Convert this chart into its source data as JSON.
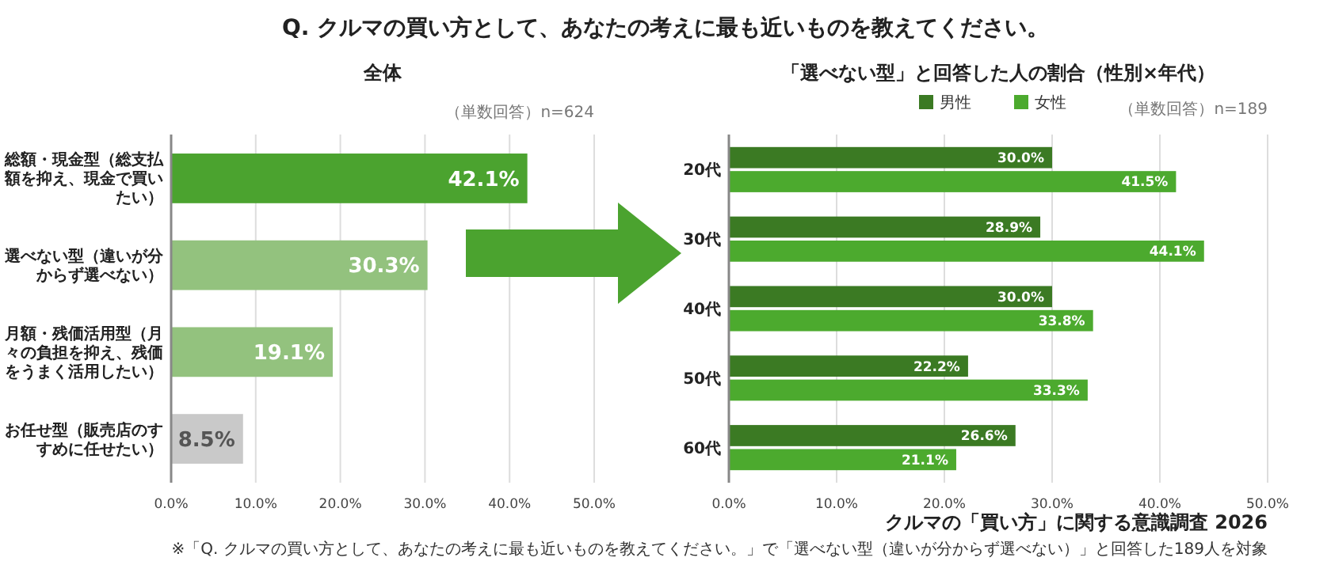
{
  "chart_data": [
    {
      "type": "bar",
      "orientation": "horizontal",
      "title": "全体",
      "categories": [
        "総額・現金型（総支払額を抑え、現金で買いたい）",
        "選べない型（違いが分からず選べない）",
        "月額・残価活用型（月々の負担を抑え、残価をうまく活用したい）",
        "お任せ型（販売店のすすめに任せたい）"
      ],
      "values": [
        42.1,
        30.3,
        19.1,
        8.5
      ],
      "colors": [
        "#4ba32f",
        "#93c27e",
        "#93c27e",
        "#c9c9c9"
      ],
      "value_labels": [
        "42.1%",
        "30.3%",
        "19.1%",
        "8.5%"
      ],
      "xlim": [
        0,
        50
      ],
      "xticks": [
        {
          "value": 0,
          "label": "0.0%"
        },
        {
          "value": 10,
          "label": "10.0%"
        },
        {
          "value": 20,
          "label": "20.0%"
        },
        {
          "value": 30,
          "label": "30.0%"
        },
        {
          "value": 40,
          "label": "40.0%"
        },
        {
          "value": 50,
          "label": "50.0%"
        }
      ],
      "grid": "x",
      "annotations": [
        "Q. クルマの買い方として、あなたの考えに最も近いものを教えてください。",
        "（単数回答）n=624"
      ]
    },
    {
      "type": "bar",
      "orientation": "horizontal",
      "title": "「選べない型」と回答した人の割合（性別×年代）",
      "categories": [
        "20代",
        "30代",
        "40代",
        "50代",
        "60代"
      ],
      "series": [
        {
          "name": "男性",
          "color": "#3b7a23",
          "values": [
            30.0,
            28.9,
            30.0,
            22.2,
            26.6
          ],
          "value_labels": [
            "30.0%",
            "28.9%",
            "30.0%",
            "22.2%",
            "26.6%"
          ]
        },
        {
          "name": "女性",
          "color": "#4caa2e",
          "values": [
            41.5,
            44.1,
            33.8,
            33.3,
            21.1
          ],
          "value_labels": [
            "41.5%",
            "44.1%",
            "33.8%",
            "33.3%",
            "21.1%"
          ]
        }
      ],
      "xlim": [
        0,
        50
      ],
      "xticks": [
        {
          "value": 0,
          "label": "0.0%"
        },
        {
          "value": 10,
          "label": "10.0%"
        },
        {
          "value": 20,
          "label": "20.0%"
        },
        {
          "value": 30,
          "label": "30.0%"
        },
        {
          "value": 40,
          "label": "40.0%"
        },
        {
          "value": 50,
          "label": "50.0%"
        }
      ],
      "grid": "x",
      "legend": "top",
      "annotations": [
        "（単数回答）n=189",
        "クルマの「買い方」に関する意識調査 2026",
        "※「Q. クルマの買い方として、あなたの考えに最も近いものを教えてください。」で「選べない型（違いが分からず選べない）」と回答した189人を対象"
      ]
    }
  ]
}
